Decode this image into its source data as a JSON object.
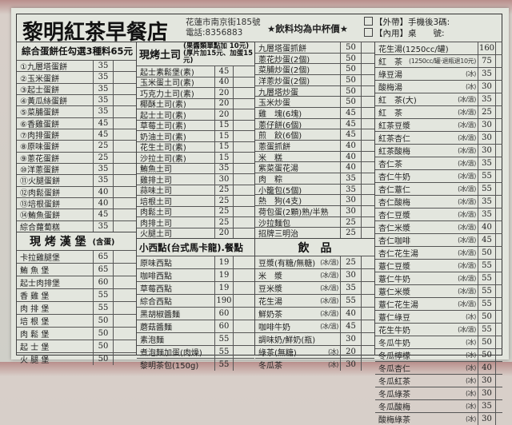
{
  "header": {
    "shop_name": "黎明紅茶早餐店",
    "address": "花蓮市南京街185號",
    "phone": "電話:8356883",
    "cup_note": "★飲料均為中杯價★",
    "takeout": "【外帶】手機後3碼:",
    "dinein": "【內用】桌　　號:"
  },
  "sections": {
    "egg_pancake": {
      "title": "綜合蛋餅任勾選3種料65元",
      "items": [
        {
          "name": "①九層塔蛋餅",
          "price": "35"
        },
        {
          "name": "②玉米蛋餅",
          "price": "35"
        },
        {
          "name": "③起士蛋餅",
          "price": "35"
        },
        {
          "name": "④黃瓜絲蛋餅",
          "price": "35"
        },
        {
          "name": "⑤菜脯蛋餅",
          "price": "35"
        },
        {
          "name": "⑥香雞蛋餅",
          "price": "45"
        },
        {
          "name": "⑦肉排蛋餅",
          "price": "45"
        },
        {
          "name": "⑧原味蛋餅",
          "price": "25"
        },
        {
          "name": "⑨蔥花蛋餅",
          "price": "25"
        },
        {
          "name": "⑩洋蔥蛋餅",
          "price": "35"
        },
        {
          "name": "⑪火腿蛋餅",
          "price": "35"
        },
        {
          "name": "⑫肉鬆蛋餅",
          "price": "40"
        },
        {
          "name": "⑬培根蛋餅",
          "price": "40"
        },
        {
          "name": "⑭鮪魚蛋餅",
          "price": "45"
        },
        {
          "name": "綜合蘿蔔糕",
          "price": "35"
        }
      ]
    },
    "burger": {
      "title": "現 烤 漢 堡",
      "subtitle": "(含蛋)",
      "items": [
        {
          "name": "卡拉雞腿堡",
          "price": "65"
        },
        {
          "name": "鮪 魚 堡",
          "price": "65"
        },
        {
          "name": "起士肉排堡",
          "price": "60"
        },
        {
          "name": "香 雞 堡",
          "price": "55"
        },
        {
          "name": "肉 排 堡",
          "price": "55"
        },
        {
          "name": "培 根 堡",
          "price": "50"
        },
        {
          "name": "肉 鬆 堡",
          "price": "50"
        },
        {
          "name": "起 士 堡",
          "price": "50"
        },
        {
          "name": "火 腿 堡",
          "price": "50"
        }
      ]
    },
    "toast": {
      "title": "現烤土司",
      "note1": "(果醬類單點加 10元)",
      "note2": "(厚片加15元、加蛋15元)",
      "items": [
        {
          "name": "起士素鬆堡(素)",
          "price": "45"
        },
        {
          "name": "玉米蛋土司(素)",
          "price": "40"
        },
        {
          "name": "巧克力土司(素)",
          "price": "20"
        },
        {
          "name": "椰酥土司(素)",
          "price": "20"
        },
        {
          "name": "起士土司(素)",
          "price": "20"
        },
        {
          "name": "草莓土司(素)",
          "price": "15"
        },
        {
          "name": "奶油土司(素)",
          "price": "15"
        },
        {
          "name": "花生土司(素)",
          "price": "15"
        },
        {
          "name": "沙拉土司(素)",
          "price": "15"
        },
        {
          "name": "鮪魚土司",
          "price": "35"
        },
        {
          "name": "雞排土司",
          "price": "30"
        },
        {
          "name": "蒜味土司",
          "price": "25"
        },
        {
          "name": "培根土司",
          "price": "25"
        },
        {
          "name": "肉鬆土司",
          "price": "25"
        },
        {
          "name": "肉排土司",
          "price": "25"
        },
        {
          "name": "火腿土司",
          "price": "20"
        }
      ]
    },
    "snacks": {
      "title": "小西點(台式馬卡龍).餐點",
      "items": [
        {
          "name": "原味西點",
          "price": "19"
        },
        {
          "name": "咖啡西點",
          "price": "19"
        },
        {
          "name": "草莓西點",
          "price": "19"
        },
        {
          "name": "綜合西點",
          "price": "190"
        },
        {
          "name": "黑胡椒醬麵",
          "price": "60"
        },
        {
          "name": "蘑菇醬麵",
          "price": "60"
        },
        {
          "name": "素泡麵",
          "price": "55"
        },
        {
          "name": "煮泡麵加蛋(肉燥)",
          "price": "55"
        },
        {
          "name": "黎明茶包(150g)",
          "price": "55"
        }
      ]
    },
    "dishes": {
      "items": [
        {
          "name": "九層塔蛋抓餅",
          "price": "50"
        },
        {
          "name": "蔥花炒蛋(2個)",
          "price": "50"
        },
        {
          "name": "菜脯炒蛋(2個)",
          "price": "50"
        },
        {
          "name": "洋蔥炒蛋(2個)",
          "price": "50"
        },
        {
          "name": "九層塔炒蛋",
          "price": "50"
        },
        {
          "name": "玉米炒蛋",
          "price": "50"
        },
        {
          "name": "雞　塊(6塊)",
          "price": "45"
        },
        {
          "name": "蔥仔餅(6個)",
          "price": "45"
        },
        {
          "name": "煎　餃(6個)",
          "price": "45"
        },
        {
          "name": "蔥蛋抓餅",
          "price": "40"
        },
        {
          "name": "米　糕",
          "price": "40"
        },
        {
          "name": "紫菜蛋花湯",
          "price": "40"
        },
        {
          "name": "肉　粽",
          "price": "35"
        },
        {
          "name": "小籠包(5個)",
          "price": "35"
        },
        {
          "name": "熱　狗(4支)",
          "price": "30"
        },
        {
          "name": "荷包蛋(2顆)熟/半熟",
          "price": "30"
        },
        {
          "name": "沙拉麵包",
          "price": "25"
        },
        {
          "name": "招牌三明治",
          "price": "25"
        }
      ]
    },
    "drinks": {
      "title": "飲　品",
      "items": [
        {
          "name": "豆漿(有糖/無糖)",
          "temp": "(冰/溫)",
          "price": "25"
        },
        {
          "name": "米　漿",
          "temp": "(冰/溫)",
          "price": "30"
        },
        {
          "name": "豆米漿",
          "temp": "(冰/溫)",
          "price": "35"
        },
        {
          "name": "花生湯",
          "temp": "(冰/溫)",
          "price": "55"
        },
        {
          "name": "鮮奶茶",
          "temp": "(冰/溫)",
          "price": "40"
        },
        {
          "name": "咖啡牛奶",
          "temp": "(冰/溫)",
          "price": "45"
        },
        {
          "name": "調味奶/鮮奶(瓶)",
          "temp": "",
          "price": "30"
        },
        {
          "name": "綠茶(無糖)",
          "temp": "(冰)",
          "price": "20"
        },
        {
          "name": "冬瓜茶",
          "temp": "(冰)",
          "price": "30"
        }
      ]
    },
    "drinks2": {
      "items": [
        {
          "name": "花生湯(1250cc/罐)",
          "temp": "",
          "price": "160"
        },
        {
          "name": "紅　茶",
          "temp": "(1250cc/罐‧退瓶退10元)",
          "price": "75"
        },
        {
          "name": "綠豆湯",
          "temp": "(冰)",
          "price": "35"
        },
        {
          "name": "酸梅湯",
          "temp": "(冰)",
          "price": "30"
        },
        {
          "name": "紅　茶(大)",
          "temp": "(冰/溫)",
          "price": "35"
        },
        {
          "name": "紅　茶",
          "temp": "(冰/溫)",
          "price": "25"
        },
        {
          "name": "紅茶豆漿",
          "temp": "(冰/溫)",
          "price": "30"
        },
        {
          "name": "紅茶杏仁",
          "temp": "(冰/溫)",
          "price": "30"
        },
        {
          "name": "紅茶酸梅",
          "temp": "(冰/溫)",
          "price": "30"
        },
        {
          "name": "杏仁茶",
          "temp": "(冰/溫)",
          "price": "35"
        },
        {
          "name": "杏仁牛奶",
          "temp": "(冰/溫)",
          "price": "55"
        },
        {
          "name": "杏仁薏仁",
          "temp": "(冰/溫)",
          "price": "55"
        },
        {
          "name": "杏仁酸梅",
          "temp": "(冰/溫)",
          "price": "35"
        },
        {
          "name": "杏仁豆漿",
          "temp": "(冰/溫)",
          "price": "35"
        },
        {
          "name": "杏仁米漿",
          "temp": "(冰/溫)",
          "price": "40"
        },
        {
          "name": "杏仁咖啡",
          "temp": "(冰/溫)",
          "price": "45"
        },
        {
          "name": "杏仁花生湯",
          "temp": "(冰/溫)",
          "price": "50"
        },
        {
          "name": "薏仁豆漿",
          "temp": "(冰/溫)",
          "price": "55"
        },
        {
          "name": "薏仁牛奶",
          "temp": "(冰/溫)",
          "price": "55"
        },
        {
          "name": "薏仁米漿",
          "temp": "(冰/溫)",
          "price": "55"
        },
        {
          "name": "薏仁花生湯",
          "temp": "(冰/溫)",
          "price": "55"
        },
        {
          "name": "薏仁綠豆",
          "temp": "(冰)",
          "price": "50"
        },
        {
          "name": "花生牛奶",
          "temp": "(冰/溫)",
          "price": "55"
        },
        {
          "name": "冬瓜牛奶",
          "temp": "(冰)",
          "price": "50"
        },
        {
          "name": "冬瓜檸檬",
          "temp": "(冰)",
          "price": "50"
        },
        {
          "name": "冬瓜杏仁",
          "temp": "(冰)",
          "price": "40"
        },
        {
          "name": "冬瓜紅茶",
          "temp": "(冰)",
          "price": "30"
        },
        {
          "name": "冬瓜綠茶",
          "temp": "(冰)",
          "price": "30"
        },
        {
          "name": "冬瓜酸梅",
          "temp": "(冰)",
          "price": "35"
        },
        {
          "name": "酸梅綠茶",
          "temp": "(冰)",
          "price": "30"
        }
      ]
    }
  }
}
